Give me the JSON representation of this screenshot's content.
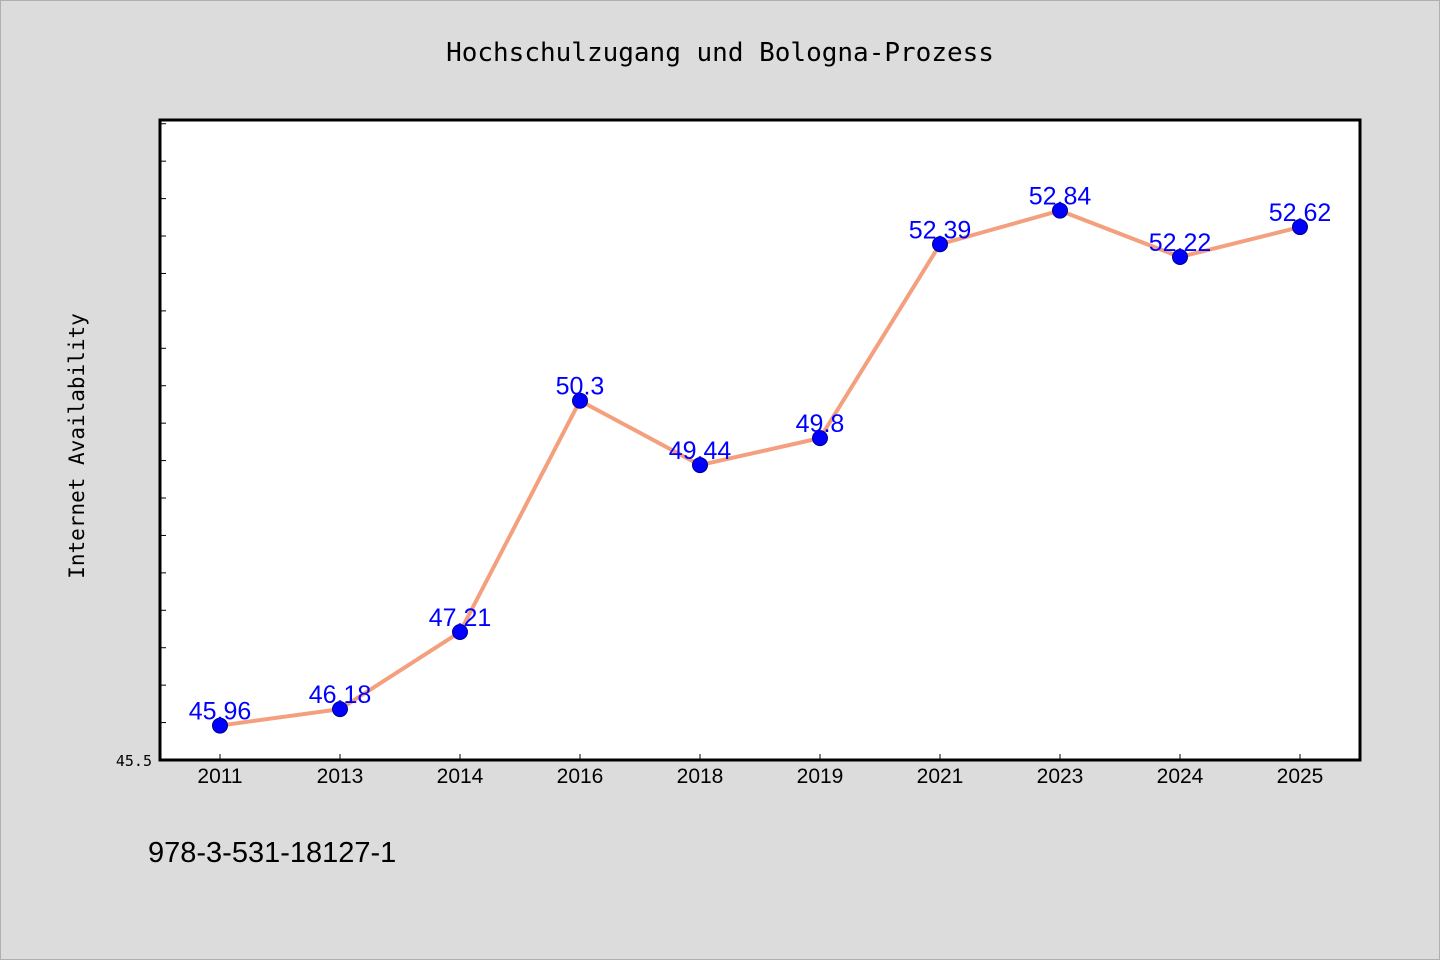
{
  "chart_data": {
    "type": "line",
    "title": "Hochschulzugang und Bologna-Prozess",
    "ylabel": "Internet Availability",
    "xlabel": "",
    "categories": [
      "2011",
      "2013",
      "2014",
      "2016",
      "2018",
      "2019",
      "2021",
      "2023",
      "2024",
      "2025"
    ],
    "values": [
      45.96,
      46.18,
      47.21,
      50.3,
      49.44,
      49.8,
      52.39,
      52.84,
      52.22,
      52.62
    ],
    "data_labels": [
      "45.96",
      "46.18",
      "47.21",
      "50.3",
      "49.44",
      "49.8",
      "52.39",
      "52.84",
      "52.22",
      "52.62"
    ],
    "ylim": [
      45.5,
      54.05
    ],
    "y_tick_labels": [
      "45.5"
    ],
    "y_minor_tick_step": 0.5,
    "grid": false,
    "legend": "none",
    "line_color": "#f4a07e",
    "marker_color": "#0000ff",
    "label_color": "#0000ff",
    "plot_background": "#ffffff",
    "figure_background": "#dcdcdc"
  },
  "footer": {
    "code": "978-3-531-18127-1"
  }
}
